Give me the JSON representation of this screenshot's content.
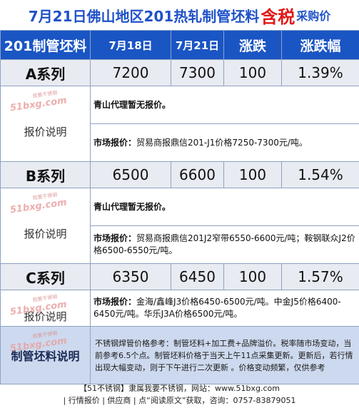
{
  "title": {
    "main": "7月21日佛山地区201热轧制管坯料",
    "highlight": "含税",
    "suffix": "采购价"
  },
  "header": {
    "product": "201制管坯料",
    "date1": "7月18日",
    "date2": "7月21日",
    "change": "涨跌",
    "change_pct": "涨跌幅"
  },
  "rows": [
    {
      "name": "A系列",
      "v1": "7200",
      "v2": "7300",
      "change": "100",
      "pct": "1.39%",
      "label": "报价说明",
      "note1": "青山代理暂无报价。",
      "note2_prefix": "市场报价：",
      "note2": "贸易商报鼎信201-J1价格7250-7300元/吨。"
    },
    {
      "name": "B系列",
      "v1": "6500",
      "v2": "6600",
      "change": "100",
      "pct": "1.54%",
      "label": "报价说明",
      "note1": "青山代理暂无报价。",
      "note2_prefix": "市场报价：",
      "note2": "贸易商报鼎信201J2窄带6550-6600元/吨；鞍钢联众J2价格6500-6550元/吨。"
    },
    {
      "name": "C系列",
      "v1": "6350",
      "v2": "6450",
      "change": "100",
      "pct": "1.57%",
      "label": "报价说明",
      "note2_prefix": "市场报价：",
      "note2": "金海/鑫峰J3价格6450-6500元/吨。中金J5价格6400-6450元/吨。华乐J3A价格6500元/吨。"
    }
  ],
  "watermark": {
    "text": "51bxg.com",
    "sub": "我要不锈钢"
  },
  "bottom": {
    "label": "制管坯料说明",
    "note": "不锈钢焊管价格参考：制管坯料+加工费+品牌溢价。税率随市场变动，当前参考6.5个点。制管坯料价格于当天上午11点采集更新。更新后，若行情出现大幅变动，则于下午进行二次更新 。价格变动频繁，仅供参考"
  },
  "footer": {
    "line1": "【51不锈钢】隶属我要不锈钢，网站：www.51bxg.com",
    "line2": "| 行情报价 | 供应商 | 点“阅读原文”获取，咨询：0757-83879051"
  }
}
